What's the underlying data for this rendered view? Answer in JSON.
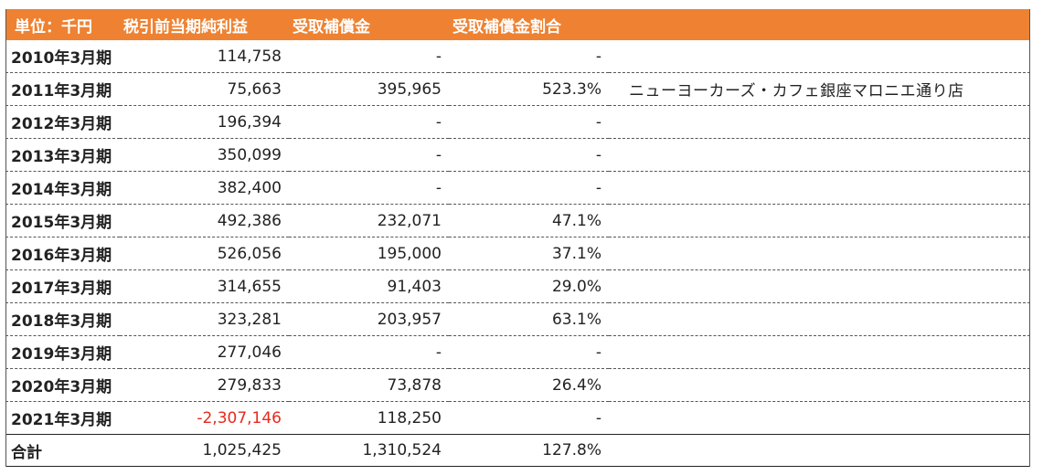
{
  "table": {
    "headers": [
      "単位：千円",
      "税引前当期純利益",
      "受取補償金",
      "受取補償金割合",
      ""
    ],
    "rows": [
      {
        "label": "2010年3月期",
        "profit": "114,758",
        "compensation": "-",
        "ratio": "-",
        "note": ""
      },
      {
        "label": "2011年3月期",
        "profit": "75,663",
        "compensation": "395,965",
        "ratio": "523.3%",
        "note": "ニューヨーカーズ・カフェ銀座マロニエ通り店"
      },
      {
        "label": "2012年3月期",
        "profit": "196,394",
        "compensation": "-",
        "ratio": "-",
        "note": ""
      },
      {
        "label": "2013年3月期",
        "profit": "350,099",
        "compensation": "-",
        "ratio": "-",
        "note": ""
      },
      {
        "label": "2014年3月期",
        "profit": "382,400",
        "compensation": "-",
        "ratio": "-",
        "note": ""
      },
      {
        "label": "2015年3月期",
        "profit": "492,386",
        "compensation": "232,071",
        "ratio": "47.1%",
        "note": ""
      },
      {
        "label": "2016年3月期",
        "profit": "526,056",
        "compensation": "195,000",
        "ratio": "37.1%",
        "note": ""
      },
      {
        "label": "2017年3月期",
        "profit": "314,655",
        "compensation": "91,403",
        "ratio": "29.0%",
        "note": ""
      },
      {
        "label": "2018年3月期",
        "profit": "323,281",
        "compensation": "203,957",
        "ratio": "63.1%",
        "note": ""
      },
      {
        "label": "2019年3月期",
        "profit": "277,046",
        "compensation": "-",
        "ratio": "-",
        "note": ""
      },
      {
        "label": "2020年3月期",
        "profit": "279,833",
        "compensation": "73,878",
        "ratio": "26.4%",
        "note": ""
      },
      {
        "label": "2021年3月期",
        "profit": "-2,307,146",
        "compensation": "118,250",
        "ratio": "-",
        "note": "",
        "negative": true
      }
    ],
    "total": {
      "label": "合計",
      "profit": "1,025,425",
      "compensation": "1,310,524",
      "ratio": "127.8%",
      "note": ""
    }
  },
  "colors": {
    "header_bg": "#ee8232",
    "header_text": "#ffffff",
    "negative": "#e8291c"
  }
}
